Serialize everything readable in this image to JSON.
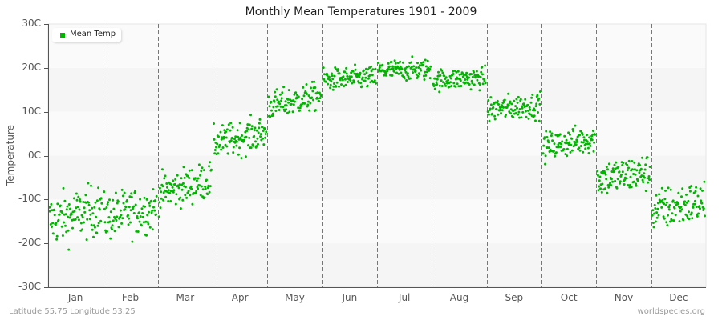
{
  "title": "Monthly Mean Temperatures 1901 - 2009",
  "ylabel": "Temperature",
  "legend": {
    "label": "Mean Temp",
    "color": "#00b400"
  },
  "footer": {
    "location": "Latitude 55.75 Longitude 53.25",
    "source": "worldspecies.org"
  },
  "colors": {
    "point": "#00b400",
    "band_dark": "#f5f5f5",
    "band_light": "#fafafa",
    "axis": "#555555",
    "divider": "#777777"
  },
  "chart_data": {
    "type": "scatter",
    "title": "Monthly Mean Temperatures 1901 - 2009",
    "xlabel": "",
    "ylabel": "Temperature",
    "categories": [
      "Jan",
      "Feb",
      "Mar",
      "Apr",
      "May",
      "Jun",
      "Jul",
      "Aug",
      "Sep",
      "Oct",
      "Nov",
      "Dec"
    ],
    "yticks": [
      "30C",
      "20C",
      "10C",
      "0C",
      "-10C",
      "-20C",
      "-30C"
    ],
    "ylim": [
      -30,
      30
    ],
    "grid": "alternating horizontal bands, dashed vertical month dividers",
    "legend_position": "top-left",
    "years": [
      1901,
      2009
    ],
    "points_per_month": 109,
    "series": [
      {
        "name": "Mean Temp",
        "monthly": [
          {
            "month": "Jan",
            "mean": -13.5,
            "min": -24.2,
            "max": -3.8,
            "spread": 3.6,
            "trend": 2.5
          },
          {
            "month": "Feb",
            "mean": -13.0,
            "min": -22.3,
            "max": -3.5,
            "spread": 3.3,
            "trend": 2.0
          },
          {
            "month": "Mar",
            "mean": -7.0,
            "min": -14.0,
            "max": -1.0,
            "spread": 2.6,
            "trend": 3.0
          },
          {
            "month": "Apr",
            "mean": 4.0,
            "min": -2.0,
            "max": 10.0,
            "spread": 2.3,
            "trend": 2.5
          },
          {
            "month": "May",
            "mean": 12.5,
            "min": 8.0,
            "max": 18.0,
            "spread": 2.0,
            "trend": 2.5
          },
          {
            "month": "Jun",
            "mean": 17.5,
            "min": 13.0,
            "max": 22.5,
            "spread": 1.6,
            "trend": 0.5
          },
          {
            "month": "Jul",
            "mean": 19.5,
            "min": 15.0,
            "max": 23.5,
            "spread": 1.5,
            "trend": 0.3
          },
          {
            "month": "Aug",
            "mean": 17.5,
            "min": 13.5,
            "max": 22.0,
            "spread": 1.5,
            "trend": 0.5
          },
          {
            "month": "Sep",
            "mean": 11.0,
            "min": 6.0,
            "max": 16.0,
            "spread": 1.8,
            "trend": 1.0
          },
          {
            "month": "Oct",
            "mean": 3.0,
            "min": -2.0,
            "max": 8.0,
            "spread": 2.0,
            "trend": 2.0
          },
          {
            "month": "Nov",
            "mean": -4.5,
            "min": -12.0,
            "max": 2.0,
            "spread": 2.6,
            "trend": 1.5
          },
          {
            "month": "Dec",
            "mean": -11.5,
            "min": -19.0,
            "max": -4.0,
            "spread": 3.0,
            "trend": 2.0
          }
        ]
      }
    ]
  }
}
